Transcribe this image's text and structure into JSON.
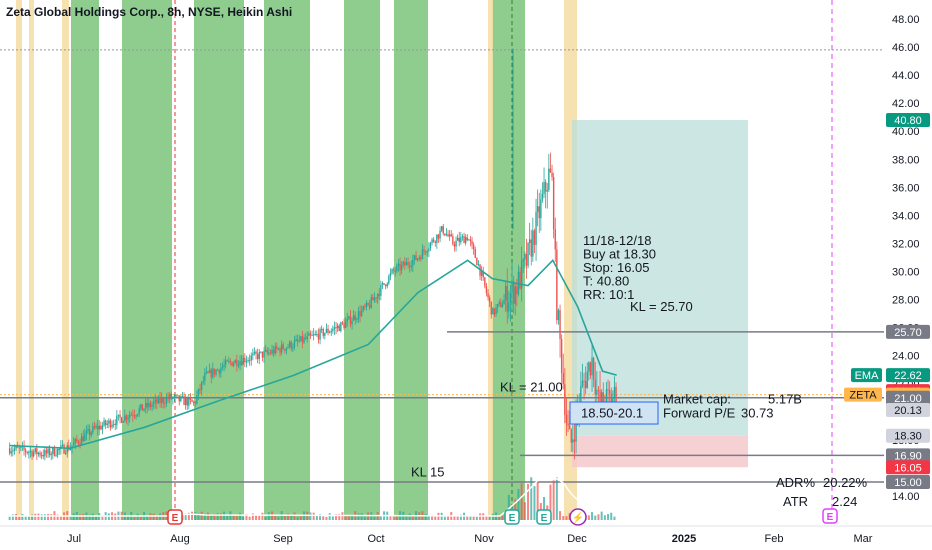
{
  "title": "Zeta Global Holdings Corp., 8h, NYSE, Heikin Ashi",
  "chart_data": {
    "type": "candlestick",
    "symbol": "ZETA",
    "exchange": "NYSE",
    "interval": "8h",
    "candle_style": "Heikin Ashi",
    "y_axis": {
      "ticks": [
        "48.00",
        "46.00",
        "44.00",
        "42.00",
        "40.00",
        "38.00",
        "36.00",
        "34.00",
        "32.00",
        "30.00",
        "28.00",
        "26.00",
        "24.00",
        "22.00",
        "20.00",
        "18.00",
        "16.00",
        "14.00"
      ],
      "range": [
        13.5,
        48.5
      ]
    },
    "x_axis": {
      "ticks": [
        "Jul",
        "Aug",
        "Sep",
        "Oct",
        "Nov",
        "Dec",
        "2025",
        "Feb",
        "Mar"
      ]
    },
    "price_path": [
      [
        "Jun 14",
        17.4
      ],
      [
        "Jun 24",
        17.0
      ],
      [
        "Jul 1",
        17.5
      ],
      [
        "Jul 8",
        18.8
      ],
      [
        "Jul 15",
        19.5
      ],
      [
        "Jul 22",
        20.3
      ],
      [
        "Jul 29",
        21.0
      ],
      [
        "Aug 5",
        20.6
      ],
      [
        "Aug 8",
        22.5
      ],
      [
        "Aug 15",
        23.5
      ],
      [
        "Aug 26",
        24.2
      ],
      [
        "Sep 9",
        25.5
      ],
      [
        "Sep 16",
        26.2
      ],
      [
        "Sep 23",
        27.5
      ],
      [
        "Sep 30",
        30.0
      ],
      [
        "Oct 7",
        31.0
      ],
      [
        "Oct 14",
        33.0
      ],
      [
        "Oct 17",
        32.0
      ],
      [
        "Oct 21",
        32.5
      ],
      [
        "Oct 24",
        30.5
      ],
      [
        "Oct 28",
        27.0
      ],
      [
        "Nov 4",
        29.0
      ],
      [
        "Nov 7",
        31.0
      ],
      [
        "Nov 11",
        35.0
      ],
      [
        "Nov 13",
        37.0
      ],
      [
        "Nov 14",
        36.0
      ],
      [
        "Nov 15",
        28.0
      ],
      [
        "Nov 18",
        19.0
      ],
      [
        "Nov 19",
        17.5
      ],
      [
        "Nov 22",
        21.5
      ],
      [
        "Nov 25",
        23.8
      ],
      [
        "Nov 27",
        20.5
      ],
      [
        "Dec 2",
        21.2
      ]
    ],
    "ema_path": [
      [
        "Jun 14",
        17.6
      ],
      [
        "Jul 1",
        17.4
      ],
      [
        "Jul 22",
        18.9
      ],
      [
        "Aug 12",
        20.8
      ],
      [
        "Sep 2",
        22.6
      ],
      [
        "Sep 23",
        24.8
      ],
      [
        "Oct 7",
        28.5
      ],
      [
        "Oct 21",
        30.8
      ],
      [
        "Oct 28",
        29.5
      ],
      [
        "Nov 7",
        29.0
      ],
      [
        "Nov 14",
        30.8
      ],
      [
        "Nov 21",
        27.5
      ],
      [
        "Nov 28",
        22.9
      ],
      [
        "Dec 2",
        22.62
      ]
    ],
    "levels": [
      {
        "label": "KL = 25.70",
        "value": 25.7
      },
      {
        "label": "KL = 21.00",
        "value": 21.0
      },
      {
        "label": "KL 15",
        "value": 15.0
      },
      {
        "label": "",
        "value": 16.9
      },
      {
        "label": "",
        "value": 45.8
      }
    ],
    "price_tags": [
      {
        "label": "",
        "value": "40.80",
        "price": 40.8,
        "color": "#089981",
        "text_color": "#ffffff"
      },
      {
        "label": "",
        "value": "25.70",
        "price": 25.7,
        "color": "#787b86",
        "text_color": "#ffffff"
      },
      {
        "label": "EMA",
        "value": "22.62",
        "price": 22.62,
        "color": "#089981",
        "text_color": "#ffffff"
      },
      {
        "label": "",
        "value": "21.48",
        "price": 21.48,
        "color": "#f23645",
        "text_color": "#ffffff"
      },
      {
        "label": "ZETA",
        "value": "21.23",
        "price": 21.23,
        "color": "#ffb74d",
        "text_color": "#131722"
      },
      {
        "label": "",
        "value": "21.00",
        "price": 21.0,
        "color": "#787b86",
        "text_color": "#ffffff"
      },
      {
        "label": "",
        "value": "20.13",
        "price": 20.13,
        "color": "#d1d4dc",
        "text_color": "#131722"
      },
      {
        "label": "",
        "value": "18.30",
        "price": 18.3,
        "color": "#d1d4dc",
        "text_color": "#131722"
      },
      {
        "label": "",
        "value": "16.90",
        "price": 16.9,
        "color": "#787b86",
        "text_color": "#ffffff"
      },
      {
        "label": "",
        "value": "16.05",
        "price": 16.05,
        "color": "#f23645",
        "text_color": "#ffffff"
      },
      {
        "label": "",
        "value": "15.00",
        "price": 15.0,
        "color": "#787b86",
        "text_color": "#ffffff"
      }
    ],
    "trade": {
      "lines": [
        "11/18-12/18",
        "Buy at 18.30",
        "Stop: 16.05",
        "T: 40.80",
        "RR: 10:1"
      ],
      "entry": 18.3,
      "stop": 16.05,
      "target": 40.8
    },
    "buy_zone": "18.50-20.1",
    "fundamentals": [
      {
        "label": "Market cap:",
        "value": "5.17B"
      },
      {
        "label": "Forward P/E",
        "value": "30.73"
      }
    ],
    "stats": [
      {
        "label": "ADR%",
        "value": "20.22%"
      },
      {
        "label": "ATR",
        "value": "2.24"
      }
    ],
    "event_markers": [
      "E",
      "E",
      "E",
      "⚡",
      "E"
    ],
    "colors": {
      "up": "#26a69a",
      "down": "#ef5350",
      "ema": "#26a69a",
      "green_band": "#7bc47b",
      "yellow_band": "#f5dfa8",
      "target_zone": "#b9ddda",
      "stop_zone": "#f5c9cc"
    }
  }
}
